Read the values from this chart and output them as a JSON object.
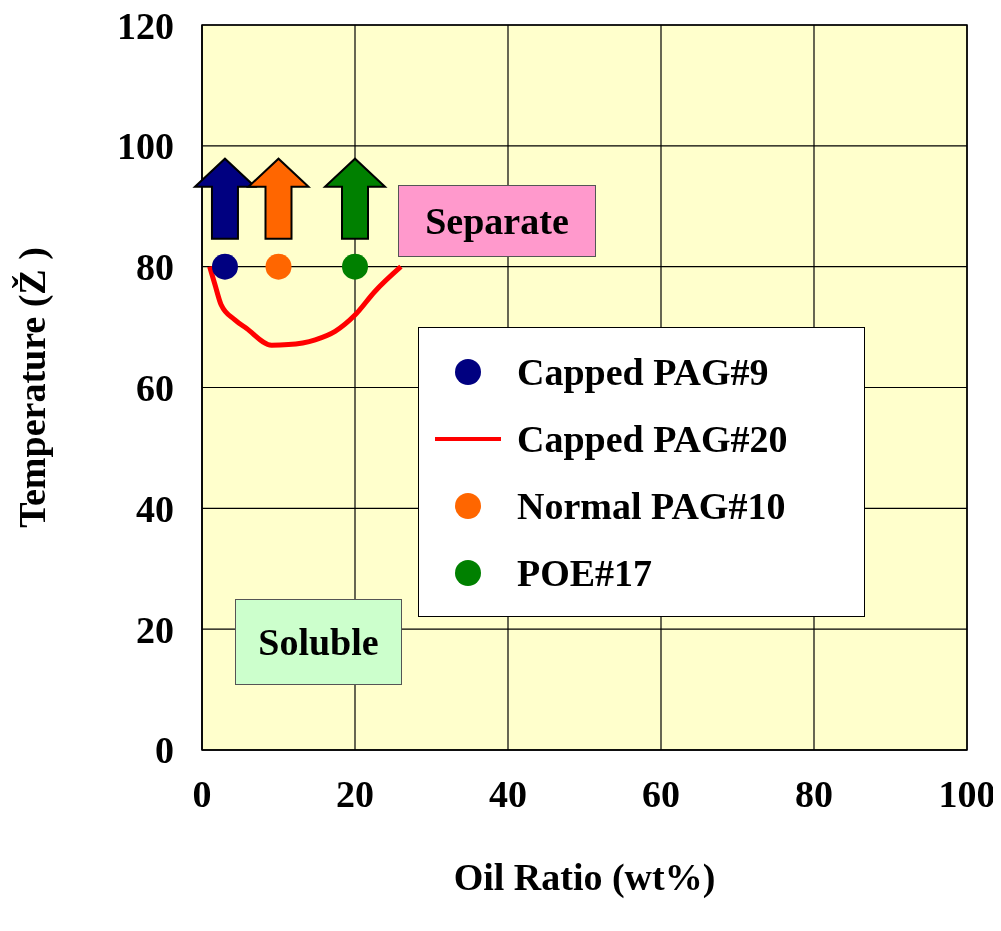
{
  "chart_data": {
    "type": "scatter",
    "xlabel": "Oil Ratio (wt%)",
    "ylabel": "Temperature (Ž )",
    "xlim": [
      0,
      100
    ],
    "xticks": [
      0,
      20,
      40,
      60,
      80,
      100
    ],
    "ylim": [
      0,
      120
    ],
    "yticks": [
      0,
      20,
      40,
      60,
      80,
      100,
      120
    ],
    "grid": true,
    "legend": "right",
    "line_style": "solid",
    "annotations": [
      "Separate",
      "Soluble"
    ],
    "series": [
      {
        "name": "Capped PAG#9",
        "color": "#000080",
        "marker": "circle",
        "x": [
          3
        ],
        "values": [
          80
        ]
      },
      {
        "name": "Capped PAG#20",
        "color": "#ff0000",
        "type": "line",
        "marker": "none",
        "x": [
          1,
          1.7,
          2.5,
          4.3,
          5.8,
          9.1,
          11.3,
          14.8,
          17.4,
          20,
          22.6,
          26
        ],
        "values": [
          80,
          77,
          73.7,
          71.2,
          69.8,
          67,
          67.1,
          67.9,
          69.3,
          72,
          75.9,
          80
        ]
      },
      {
        "name": "Normal PAG#10",
        "color": "#ff6600",
        "marker": "circle",
        "x": [
          10
        ],
        "values": [
          80
        ]
      },
      {
        "name": "POE#17",
        "color": "#008000",
        "marker": "circle",
        "x": [
          20
        ],
        "values": [
          80
        ]
      }
    ]
  }
}
